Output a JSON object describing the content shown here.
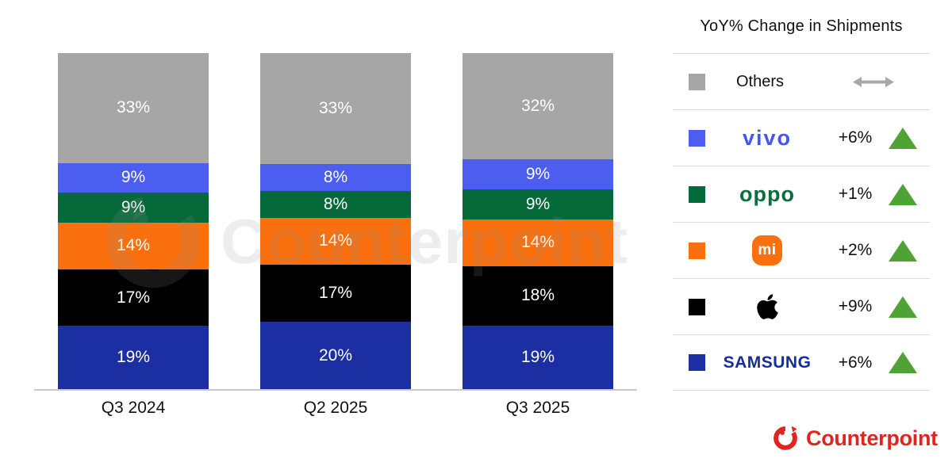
{
  "chart_data": {
    "type": "bar",
    "stacked": true,
    "unit": "%",
    "categories": [
      "Q3 2024",
      "Q2 2025",
      "Q3 2025"
    ],
    "series": [
      {
        "name": "Samsung",
        "color": "#1B2EA2",
        "values": [
          19,
          20,
          19
        ]
      },
      {
        "name": "Apple",
        "color": "#000000",
        "values": [
          17,
          17,
          18
        ]
      },
      {
        "name": "Xiaomi",
        "color": "#FA700F",
        "values": [
          14,
          14,
          14
        ]
      },
      {
        "name": "OPPO",
        "color": "#06693A",
        "values": [
          9,
          8,
          9
        ]
      },
      {
        "name": "vivo",
        "color": "#4C5EF0",
        "values": [
          9,
          8,
          9
        ]
      },
      {
        "name": "Others",
        "color": "#A6A6A6",
        "values": [
          33,
          33,
          32
        ]
      }
    ],
    "value_labels": "inside",
    "value_label_color": "#FFFFFF",
    "legend_position": "right",
    "grid": false,
    "ylim": [
      0,
      100
    ]
  },
  "legend": {
    "title": "YoY% Change in Shipments",
    "up_color": "#4FA335",
    "flat_color": "#A8A8A8",
    "rows": [
      {
        "brand": "Others",
        "swatch": "#A6A6A6",
        "change": "",
        "direction": "flat"
      },
      {
        "brand": "vivo",
        "swatch": "#4C5EF0",
        "change": "+6%",
        "direction": "up"
      },
      {
        "brand": "OPPO",
        "swatch": "#06693A",
        "change": "+1%",
        "direction": "up"
      },
      {
        "brand": "Xiaomi",
        "swatch": "#FA700F",
        "change": "+2%",
        "direction": "up"
      },
      {
        "brand": "Apple",
        "swatch": "#000000",
        "change": "+9%",
        "direction": "up"
      },
      {
        "brand": "Samsung",
        "swatch": "#1B2EA2",
        "change": "+6%",
        "direction": "up"
      }
    ]
  },
  "logos": {
    "vivo_text": "vivo",
    "vivo_color": "#4656F0",
    "oppo_text": "oppo",
    "oppo_color": "#0B6E3F",
    "mi_text": "mi",
    "mi_color": "#FA700F",
    "samsung_text": "SAMSUNG",
    "samsung_color": "#142DA0"
  },
  "watermark": {
    "text": "Counterpoint"
  },
  "footer": {
    "brand": "Counterpoint",
    "color": "#E1251E"
  }
}
